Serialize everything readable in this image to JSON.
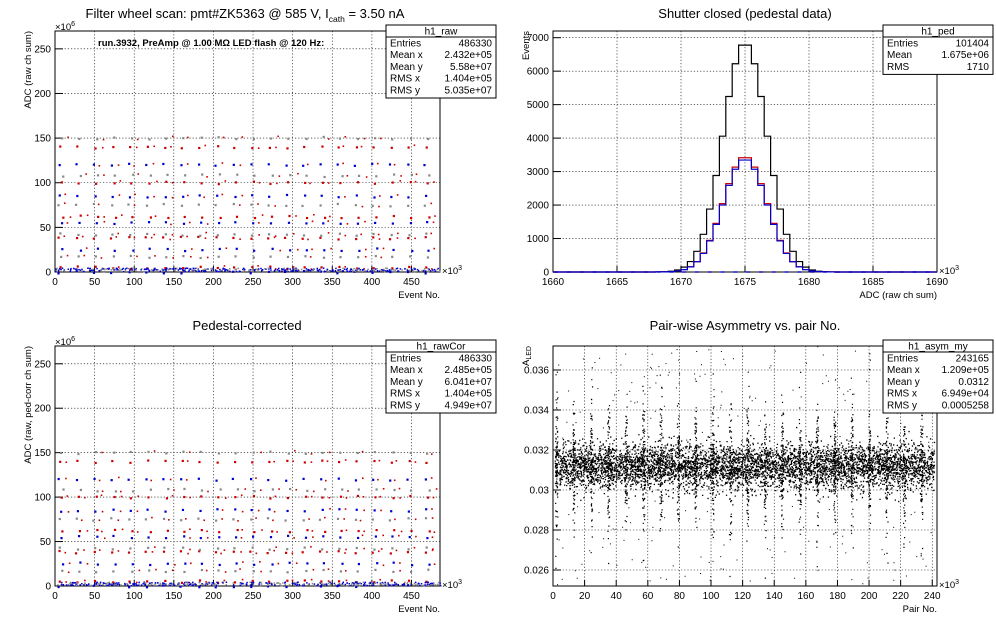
{
  "chart_data": [
    {
      "type": "scatter",
      "id": "h1_raw",
      "title": "Filter wheel scan: pmt#ZK5363 @   585 V, I",
      "title_sub": "cath",
      "title_tail": " = 3.50 nA",
      "annotation": "run.3932, PreAmp @ 1.00 MΩ LED flash @  120 Hz:",
      "xlabel": "Event No.",
      "ylabel": "ADC (raw ch sum)",
      "x_exponent": "×10",
      "x_exponent_power": "3",
      "y_exponent": "×10",
      "y_exponent_power": "6",
      "xlim": [
        0,
        486
      ],
      "ylim": [
        0,
        270
      ],
      "xticks": [
        "0",
        "50",
        "100",
        "150",
        "200",
        "250",
        "300",
        "350",
        "400",
        "450"
      ],
      "xtick_values": [
        0,
        50,
        100,
        150,
        200,
        250,
        300,
        350,
        400,
        450
      ],
      "yticks": [
        "0",
        "50",
        "100",
        "150",
        "200",
        "250"
      ],
      "ytick_values": [
        0,
        50,
        100,
        150,
        200,
        250
      ],
      "grid": true,
      "stats_box": {
        "name": "h1_raw",
        "rows": [
          {
            "label": "Entries",
            "value": "486330"
          },
          {
            "label": "Mean x",
            "value": "2.432e+05"
          },
          {
            "label": "Mean y",
            "value": "5.58e+07"
          },
          {
            "label": "RMS x",
            "value": "1.404e+05"
          },
          {
            "label": "RMS y",
            "value": "5.035e+07"
          }
        ]
      },
      "cycle_period": 22,
      "levels": [
        0,
        5,
        17,
        25,
        38,
        42,
        55,
        62,
        75,
        85,
        100,
        108,
        120,
        140,
        150
      ],
      "colors": {
        "primary": "#0000cc",
        "secondary": "#cc0000",
        "tertiary": "#888888"
      }
    },
    {
      "type": "histogram",
      "id": "h1_ped",
      "title": "Shutter closed (pedestal data)",
      "xlabel": "ADC (raw ch sum)",
      "ylabel": "Events",
      "x_exponent": "×10",
      "x_exponent_power": "3",
      "xlim": [
        1660,
        1690
      ],
      "ylim": [
        0,
        7200
      ],
      "xticks": [
        "1660",
        "1665",
        "1670",
        "1675",
        "1680",
        "1685",
        "1690"
      ],
      "xtick_values": [
        1660,
        1665,
        1670,
        1675,
        1680,
        1685,
        1690
      ],
      "yticks": [
        "0",
        "1000",
        "2000",
        "3000",
        "4000",
        "5000",
        "6000",
        "7000"
      ],
      "ytick_values": [
        0,
        1000,
        2000,
        3000,
        4000,
        5000,
        6000,
        7000
      ],
      "grid": true,
      "stats_box": {
        "name": "h1_ped",
        "rows": [
          {
            "label": "Entries",
            "value": "101404"
          },
          {
            "label": "Mean",
            "value": "1.675e+06"
          },
          {
            "label": "RMS",
            "value": "1710"
          }
        ]
      },
      "bin_width": 0.5,
      "series": [
        {
          "mean": 1675.0,
          "rms": 1.71,
          "peak": 6850,
          "color": "#000000"
        },
        {
          "mean": 1675.0,
          "rms": 1.71,
          "peak": 3450,
          "color": "#cc0000"
        },
        {
          "mean": 1675.0,
          "rms": 1.71,
          "peak": 3380,
          "color": "#0000cc"
        }
      ]
    },
    {
      "type": "scatter",
      "id": "h1_rawCor",
      "title": "Pedestal-corrected",
      "xlabel": "Event No.",
      "ylabel": "ADC (raw, ped-corr ch sum)",
      "x_exponent": "×10",
      "x_exponent_power": "3",
      "y_exponent": "×10",
      "y_exponent_power": "6",
      "xlim": [
        0,
        486
      ],
      "ylim": [
        0,
        270
      ],
      "xticks": [
        "0",
        "50",
        "100",
        "150",
        "200",
        "250",
        "300",
        "350",
        "400",
        "450"
      ],
      "xtick_values": [
        0,
        50,
        100,
        150,
        200,
        250,
        300,
        350,
        400,
        450
      ],
      "yticks": [
        "0",
        "50",
        "100",
        "150",
        "200",
        "250"
      ],
      "ytick_values": [
        0,
        50,
        100,
        150,
        200,
        250
      ],
      "grid": true,
      "stats_box": {
        "name": "h1_rawCor",
        "rows": [
          {
            "label": "Entries",
            "value": "486330"
          },
          {
            "label": "Mean x",
            "value": "2.485e+05"
          },
          {
            "label": "Mean y",
            "value": "6.041e+07"
          },
          {
            "label": "RMS x",
            "value": "1.404e+05"
          },
          {
            "label": "RMS y",
            "value": "4.949e+07"
          }
        ]
      },
      "cycle_period": 22,
      "levels": [
        0,
        5,
        17,
        25,
        38,
        42,
        55,
        62,
        75,
        85,
        100,
        108,
        120,
        140,
        150
      ],
      "colors": {
        "primary": "#0000cc",
        "secondary": "#cc0000",
        "tertiary": "#888888"
      }
    },
    {
      "type": "scatter",
      "id": "h1_asym_my",
      "title": "Pair-wise Asymmetry vs. pair No.",
      "xlabel": "Pair No.",
      "ylabel": "A",
      "ylabel_sub": "LED",
      "x_exponent": "×10",
      "x_exponent_power": "3",
      "xlim": [
        0,
        243
      ],
      "ylim": [
        0.0252,
        0.0372
      ],
      "xticks": [
        "0",
        "20",
        "40",
        "60",
        "80",
        "100",
        "120",
        "140",
        "160",
        "180",
        "200",
        "220",
        "240"
      ],
      "xtick_values": [
        0,
        20,
        40,
        60,
        80,
        100,
        120,
        140,
        160,
        180,
        200,
        220,
        240
      ],
      "yticks": [
        "0.026",
        "0.028",
        "0.03",
        "0.032",
        "0.034",
        "0.036"
      ],
      "ytick_values": [
        0.026,
        0.028,
        0.03,
        0.032,
        0.034,
        0.036
      ],
      "grid": true,
      "stats_box": {
        "name": "h1_asym_my",
        "rows": [
          {
            "label": "Entries",
            "value": "243165"
          },
          {
            "label": "Mean x",
            "value": "1.209e+05"
          },
          {
            "label": "Mean y",
            "value": "0.0312"
          },
          {
            "label": "RMS x",
            "value": "6.949e+04"
          },
          {
            "label": "RMS y",
            "value": "0.0005258"
          }
        ]
      },
      "band_center": 0.0312,
      "band_halfwidth": 0.0006,
      "spike_period": 11,
      "color": "#000000"
    }
  ]
}
